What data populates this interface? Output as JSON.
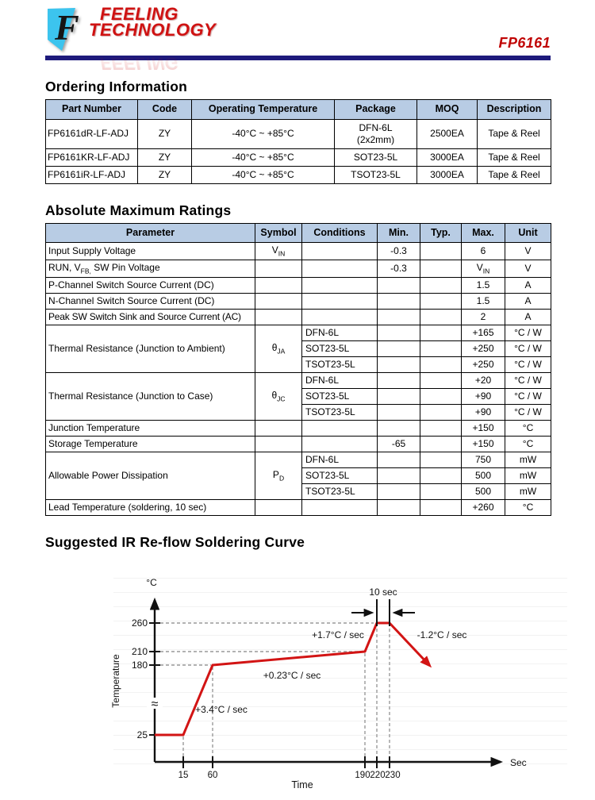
{
  "header": {
    "brand_line1": "FEELING",
    "brand_line2": "TECHNOLOGY",
    "doc_number": "FP6161"
  },
  "ordering": {
    "title": "Ordering Information",
    "headers": [
      "Part Number",
      "Code",
      "Operating Temperature",
      "Package",
      "MOQ",
      "Description"
    ],
    "rows": [
      {
        "part": "FP6161dR-LF-ADJ",
        "code": "ZY",
        "temp": "-40°C ~ +85°C",
        "pkg1": "DFN-6L",
        "pkg2": "(2x2mm)",
        "moq": "2500EA",
        "desc": "Tape & Reel"
      },
      {
        "part": "FP6161KR-LF-ADJ",
        "code": "ZY",
        "temp": "-40°C ~ +85°C",
        "pkg1": "SOT23-5L",
        "pkg2": "",
        "moq": "3000EA",
        "desc": "Tape & Reel"
      },
      {
        "part": "FP6161iR-LF-ADJ",
        "code": "ZY",
        "temp": "-40°C ~ +85°C",
        "pkg1": "TSOT23-5L",
        "pkg2": "",
        "moq": "3000EA",
        "desc": "Tape & Reel"
      }
    ]
  },
  "amr": {
    "title": "Absolute Maximum Ratings",
    "headers": [
      "Parameter",
      "Symbol",
      "Conditions",
      "Min.",
      "Typ.",
      "Max.",
      "Unit"
    ],
    "input_supply": {
      "param": "Input Supply Voltage",
      "sym": "V",
      "sym_sub": "IN",
      "min": "-0.3",
      "max": "6",
      "unit": "V"
    },
    "pin_voltage": {
      "param_pre": "RUN, V",
      "param_sub": "FB,",
      "param_post": " SW Pin Voltage",
      "min": "-0.3",
      "max": "V",
      "max_sub": "IN",
      "unit": "V"
    },
    "p_channel": {
      "param": "P-Channel Switch Source Current (DC)",
      "max": "1.5",
      "unit": "A"
    },
    "n_channel": {
      "param": "N-Channel Switch Source Current (DC)",
      "max": "1.5",
      "unit": "A"
    },
    "peak_sw": {
      "param": "Peak SW Switch Sink and Source Current (AC)",
      "max": "2",
      "unit": "A"
    },
    "theta_ja": {
      "param": "Thermal Resistance (Junction to Ambient)",
      "sym": "θ",
      "sym_sub": "JA",
      "conditions": [
        "DFN-6L",
        "SOT23-5L",
        "TSOT23-5L"
      ],
      "max": [
        "+165",
        "+250",
        "+250"
      ],
      "unit": "°C / W"
    },
    "theta_jc": {
      "param": "Thermal Resistance (Junction to Case)",
      "sym": "θ",
      "sym_sub": "JC",
      "conditions": [
        "DFN-6L",
        "SOT23-5L",
        "TSOT23-5L"
      ],
      "max": [
        "+20",
        "+90",
        "+90"
      ],
      "unit": "°C / W"
    },
    "junction_temp": {
      "param": "Junction Temperature",
      "max": "+150",
      "unit": "°C"
    },
    "storage_temp": {
      "param": "Storage Temperature",
      "min": "-65",
      "max": "+150",
      "unit": "°C"
    },
    "power_dissipation": {
      "param": "Allowable Power Dissipation",
      "sym": "P",
      "sym_sub": "D",
      "conditions": [
        "DFN-6L",
        "SOT23-5L",
        "TSOT23-5L"
      ],
      "max": [
        "750",
        "500",
        "500"
      ],
      "unit": "mW"
    },
    "lead_temp": {
      "param": "Lead Temperature (soldering, 10 sec)",
      "max": "+260",
      "unit": "°C"
    }
  },
  "curve_section": {
    "title": "Suggested IR Re-flow Soldering Curve"
  },
  "chart_data": {
    "type": "line",
    "title": "Suggested IR Re-flow Soldering Curve",
    "xlabel": "Time",
    "x_axis_unit": "Sec",
    "ylabel": "Temperature",
    "y_axis_unit": "°C",
    "x_ticks": [
      15,
      60,
      190,
      220,
      230
    ],
    "y_ticks": [
      25,
      180,
      210,
      260
    ],
    "points_sec_degC": [
      [
        0,
        25
      ],
      [
        15,
        25
      ],
      [
        60,
        180
      ],
      [
        190,
        210
      ],
      [
        220,
        260
      ],
      [
        230,
        260
      ]
    ],
    "segments": [
      {
        "label": "+3.4°C / sec",
        "from_sec": 15,
        "to_sec": 60
      },
      {
        "label": "+0.23°C / sec",
        "from_sec": 60,
        "to_sec": 190
      },
      {
        "label": "+1.7°C / sec",
        "from_sec": 190,
        "to_sec": 220
      },
      {
        "label": "-1.2°C / sec",
        "from_sec": 230
      },
      {
        "label": "10 sec",
        "from_sec": 220,
        "to_sec": 230
      }
    ],
    "y_axis_break": true,
    "line_color": "#d21414",
    "legend": "none",
    "grid": "off"
  },
  "colors": {
    "table_header_bg": "#b8cce4",
    "header_rule_navy": "#1e1a7c",
    "brand_red": "#cf1212",
    "curve_red": "#d21414",
    "dashed_gray": "#999999"
  }
}
